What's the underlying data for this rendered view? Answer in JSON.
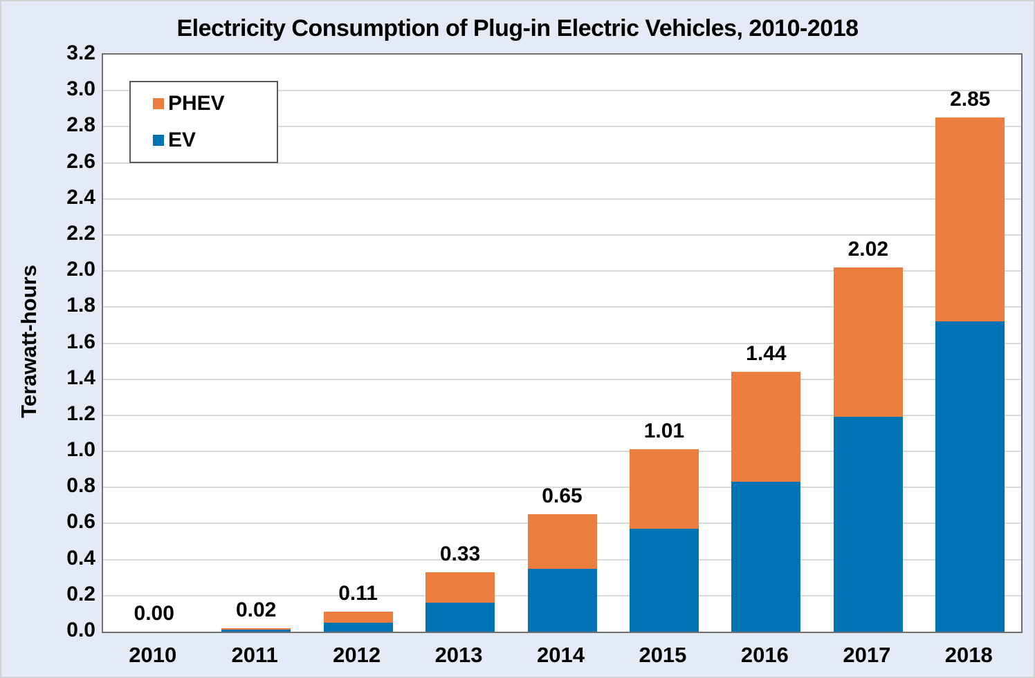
{
  "title": "Electricity Consumption of Plug-in Electric Vehicles, 2010-2018",
  "chart_data": {
    "type": "bar",
    "stacked": true,
    "title": "Electricity Consumption of Plug-in Electric Vehicles, 2010-2018",
    "ylabel": "Terawatt-hours",
    "xlabel": "",
    "categories": [
      "2010",
      "2011",
      "2012",
      "2013",
      "2014",
      "2015",
      "2016",
      "2017",
      "2018"
    ],
    "series": [
      {
        "name": "EV",
        "color": "#0073b4",
        "values": [
          0.0,
          0.01,
          0.05,
          0.16,
          0.35,
          0.57,
          0.83,
          1.19,
          1.72
        ]
      },
      {
        "name": "PHEV",
        "color": "#ec7d3c",
        "values": [
          0.0,
          0.01,
          0.06,
          0.17,
          0.3,
          0.44,
          0.61,
          0.83,
          1.13
        ]
      }
    ],
    "totals_labels": [
      "0.00",
      "0.02",
      "0.11",
      "0.33",
      "0.65",
      "1.01",
      "1.44",
      "2.02",
      "2.85"
    ],
    "ylim": [
      0,
      3.2
    ],
    "ytick_step": 0.2,
    "ytick_decimals": 1,
    "grid": true,
    "legend_position": "top-left",
    "legend_order": [
      "PHEV",
      "EV"
    ]
  },
  "colors": {
    "page_background": "#e4eaf6",
    "plot_background": "#ffffff",
    "gridline": "#d9d9d9",
    "plot_border": "#6f6f6f",
    "legend_border": "#595959",
    "text": "#000000",
    "ev_bar": "#0073b4",
    "phev_bar": "#ec7d3c"
  }
}
